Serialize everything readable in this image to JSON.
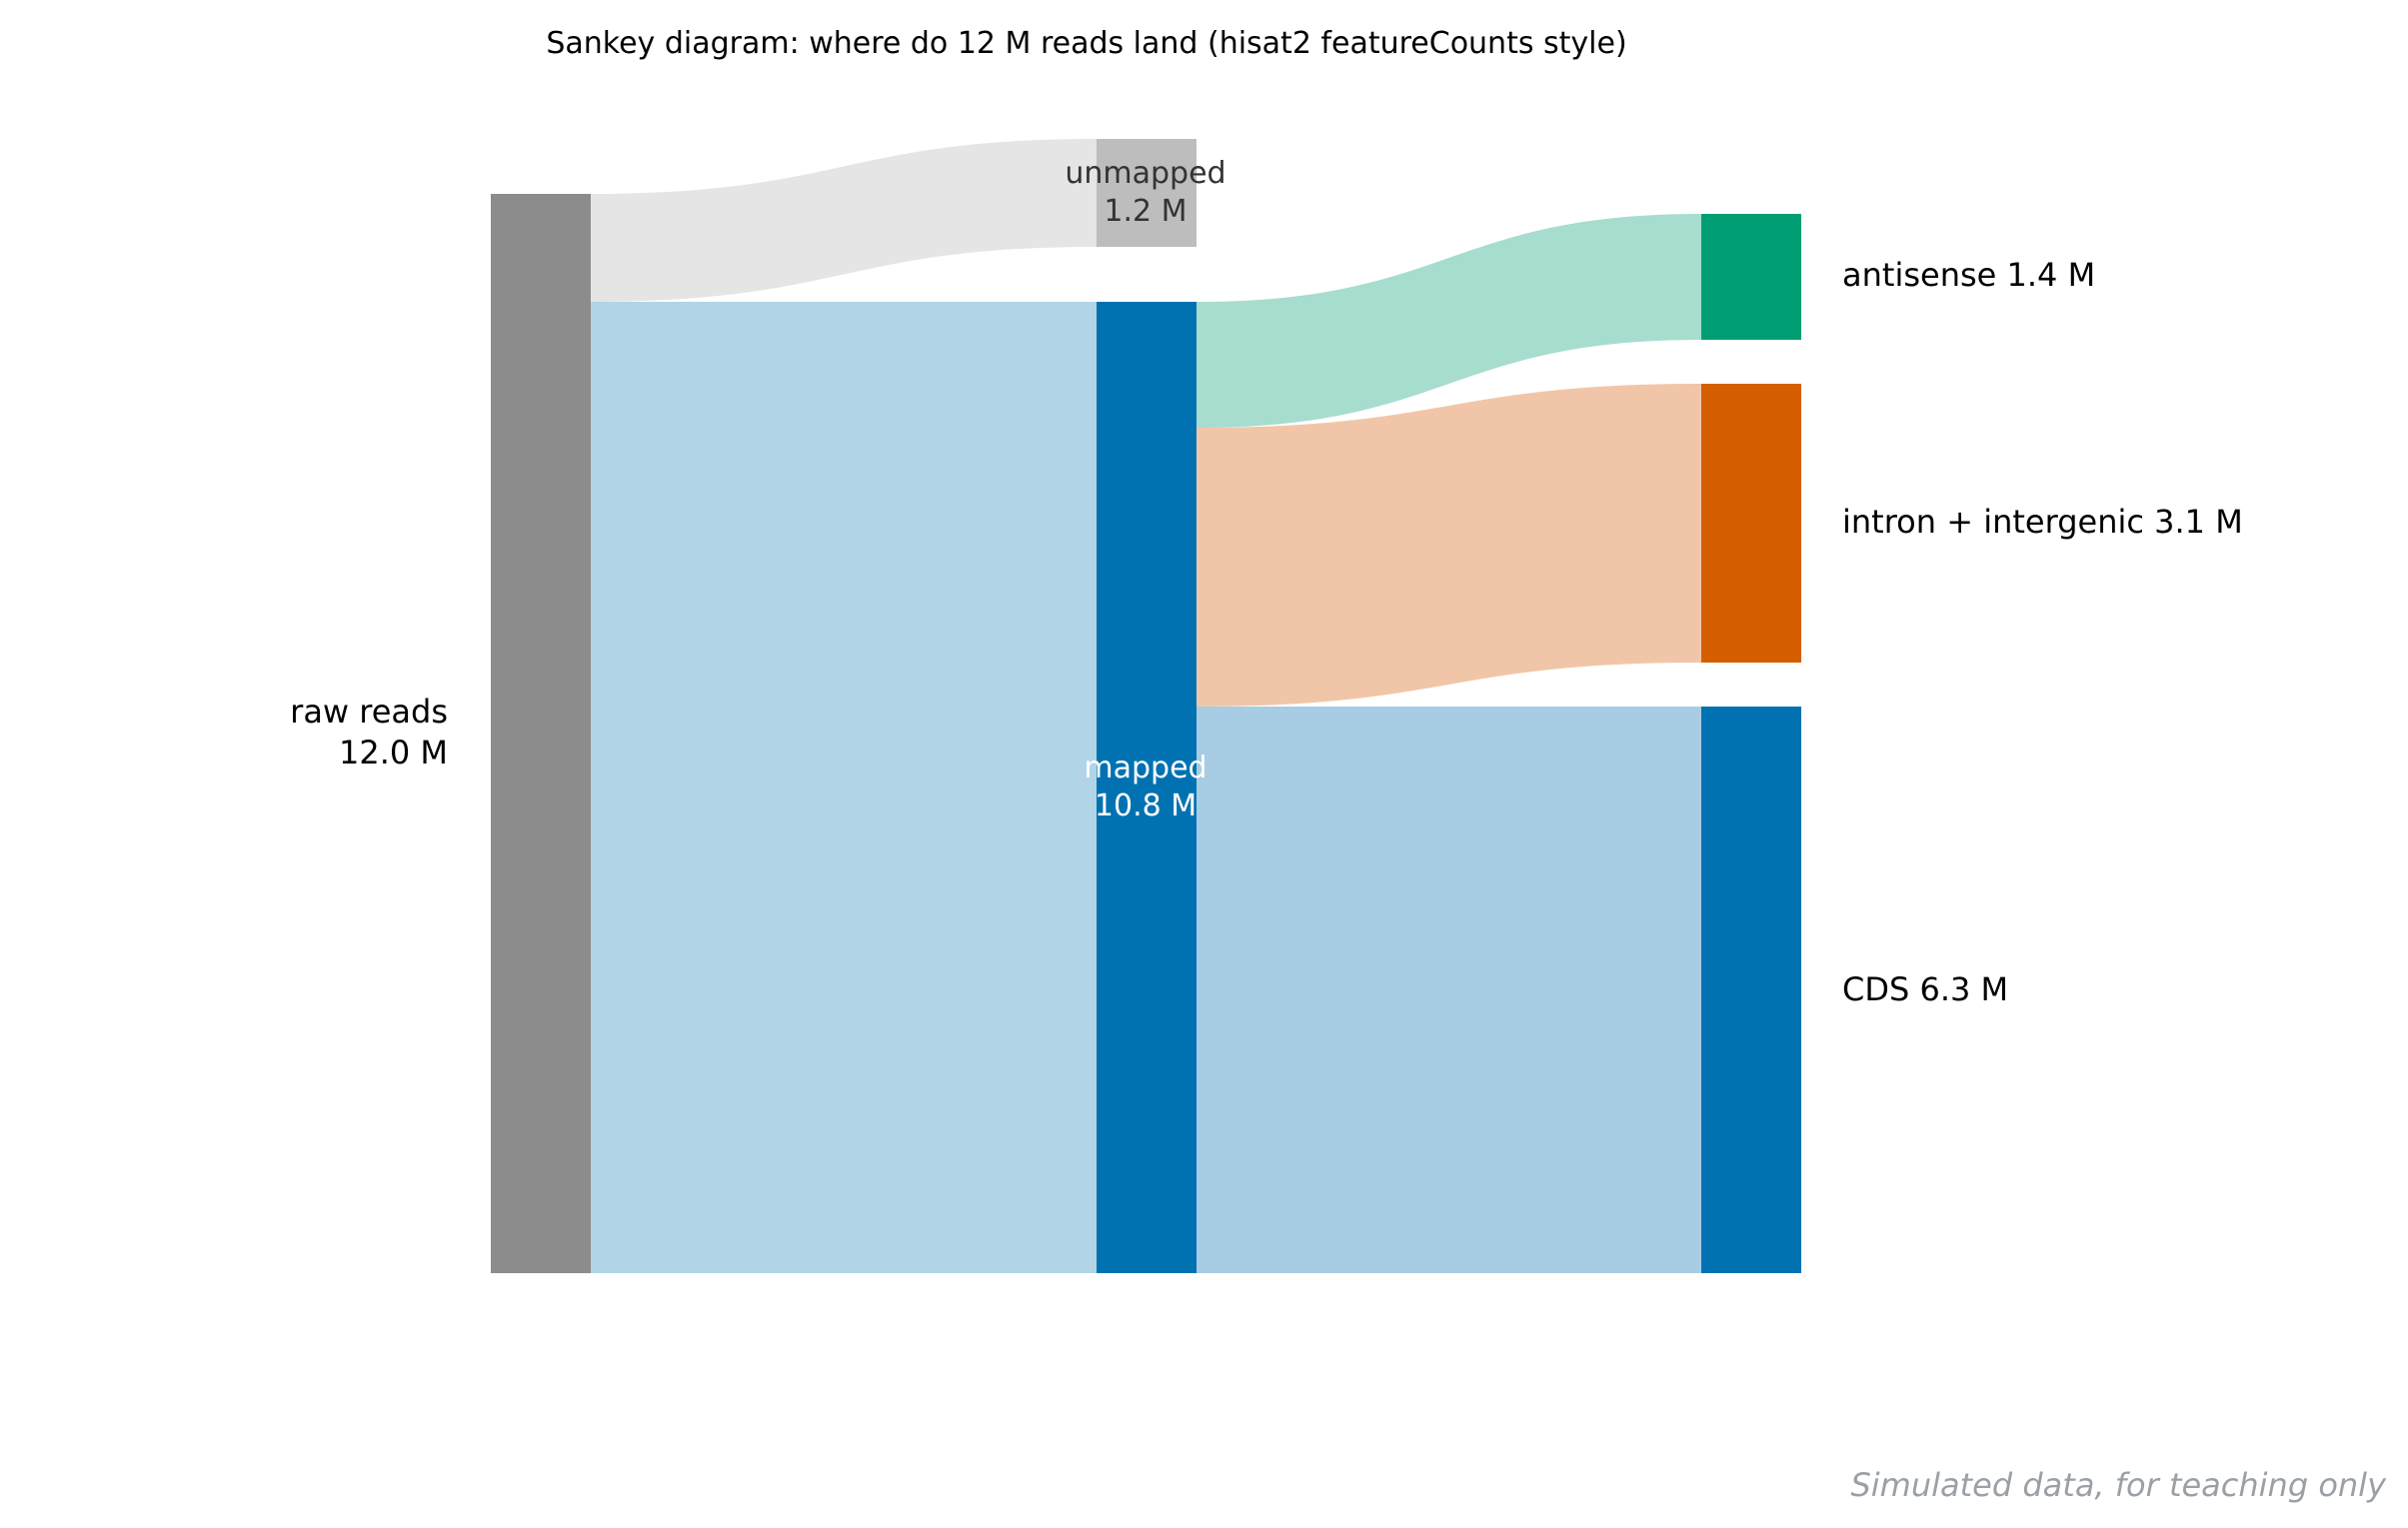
{
  "title": "Sankey diagram: where do 12 M reads land (hisat2 featureCounts style)",
  "footnote": "Simulated data, for teaching only",
  "nodes": {
    "raw": {
      "name": "raw reads",
      "value_label": "12.0 M",
      "value": 12.0,
      "color": "#8c8c8c"
    },
    "unmapped": {
      "name": "unmapped",
      "value_label": "1.2 M",
      "value": 1.2,
      "color": "#bdbdbd",
      "label_color": "#333333"
    },
    "mapped": {
      "name": "mapped",
      "value_label": "10.8 M",
      "value": 10.8,
      "color": "#0072b2",
      "label_color": "#ffffff"
    },
    "antisense": {
      "name": "antisense",
      "label": "antisense  1.4 M",
      "value": 1.4,
      "color": "#009e73"
    },
    "intron": {
      "name": "intron + intergenic",
      "label": "intron + intergenic  3.1 M",
      "value": 3.1,
      "color": "#d55e00"
    },
    "cds": {
      "name": "CDS",
      "label": "CDS  6.3 M",
      "value": 6.3,
      "color": "#0072b2"
    }
  },
  "chart_data": {
    "type": "sankey",
    "units": "M reads",
    "nodes": [
      {
        "id": "raw reads",
        "value": 12.0
      },
      {
        "id": "unmapped",
        "value": 1.2
      },
      {
        "id": "mapped",
        "value": 10.8
      },
      {
        "id": "antisense",
        "value": 1.4
      },
      {
        "id": "intron + intergenic",
        "value": 3.1
      },
      {
        "id": "CDS",
        "value": 6.3
      }
    ],
    "links": [
      {
        "source": "raw reads",
        "target": "unmapped",
        "value": 1.2,
        "color": "#e5e5e5"
      },
      {
        "source": "raw reads",
        "target": "mapped",
        "value": 10.8,
        "color": "#b1d4e7"
      },
      {
        "source": "mapped",
        "target": "antisense",
        "value": 1.4,
        "color": "#a7ddce"
      },
      {
        "source": "mapped",
        "target": "intron + intergenic",
        "value": 3.1,
        "color": "#f1c6a8"
      },
      {
        "source": "mapped",
        "target": "CDS",
        "value": 6.3,
        "color": "#a7cce3"
      }
    ]
  }
}
